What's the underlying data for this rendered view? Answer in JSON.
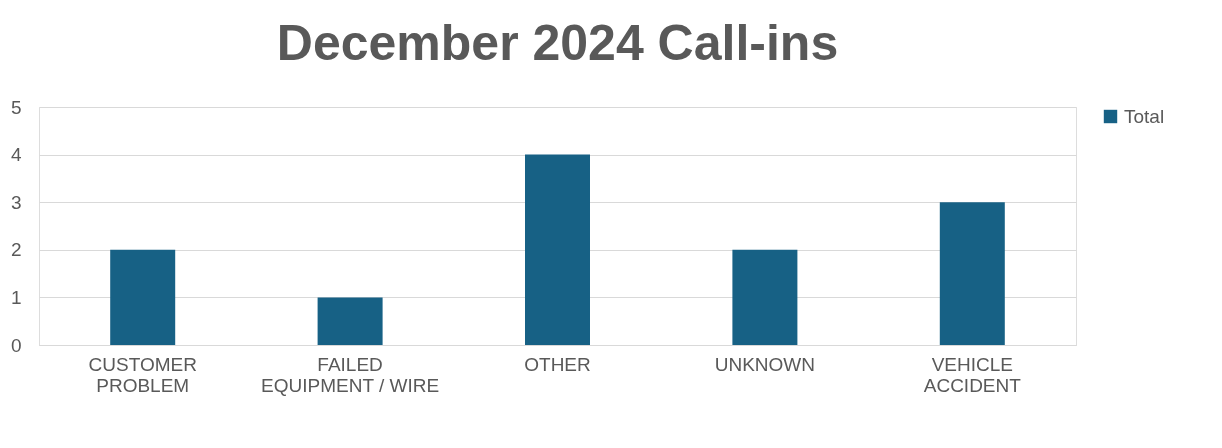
{
  "chart_data": {
    "type": "bar",
    "title": "December 2024 Call-ins",
    "categories": [
      "CUSTOMER PROBLEM",
      "FAILED EQUIPMENT / WIRE",
      "OTHER",
      "UNKNOWN",
      "VEHICLE ACCIDENT"
    ],
    "series": [
      {
        "name": "Total",
        "color": "#176185",
        "values": [
          2,
          1,
          4,
          2,
          3
        ]
      }
    ],
    "ylim": [
      0,
      5
    ],
    "yticks": [
      0,
      1,
      2,
      3,
      4,
      5
    ],
    "grid": "y",
    "legend": "right"
  }
}
